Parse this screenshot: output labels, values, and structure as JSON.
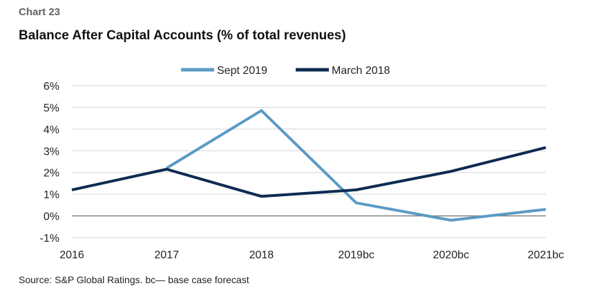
{
  "header": {
    "chart_label": "Chart 23",
    "title": "Balance After Capital Accounts (% of total revenues)"
  },
  "footer": {
    "source": "Source: S&P Global Ratings. bc— base case forecast"
  },
  "chart_data": {
    "type": "line",
    "title": "Balance After Capital Accounts (% of total revenues)",
    "xlabel": "",
    "ylabel": "",
    "categories": [
      "2016",
      "2017",
      "2018",
      "2019bc",
      "2020bc",
      "2021bc"
    ],
    "series": [
      {
        "name": "Sept 2019",
        "color": "#5b9bc4",
        "values": [
          null,
          2.2,
          4.85,
          0.6,
          -0.2,
          0.3
        ]
      },
      {
        "name": "March 2018",
        "color": "#0d2b52",
        "values": [
          1.2,
          2.15,
          0.9,
          1.2,
          2.05,
          3.15
        ]
      }
    ],
    "ylim": [
      -1,
      6
    ],
    "yticks": [
      -1,
      0,
      1,
      2,
      3,
      4,
      5,
      6
    ],
    "ytick_labels": [
      "-1%",
      "0%",
      "1%",
      "2%",
      "3%",
      "4%",
      "5%",
      "6%"
    ],
    "grid": true,
    "legend_position": "top-center"
  }
}
